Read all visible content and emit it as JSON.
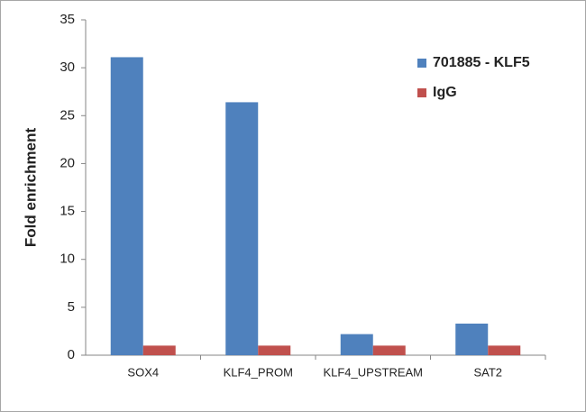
{
  "chart_data": {
    "type": "bar",
    "y_label": "Fold enrichment",
    "categories": [
      "SOX4",
      "KLF4_PROM",
      "KLF4_UPSTREAM",
      "SAT2"
    ],
    "series": [
      {
        "name": "701885 - KLF5",
        "color": "#4f81bd",
        "values": [
          31.1,
          26.4,
          2.2,
          3.3
        ]
      },
      {
        "name": "IgG",
        "color": "#c0504d",
        "values": [
          1,
          1,
          1,
          1
        ]
      }
    ],
    "ylim": [
      0,
      35
    ],
    "yticks": [
      0,
      5,
      10,
      15,
      20,
      25,
      30,
      35
    ],
    "grid": false,
    "legend": "right"
  }
}
